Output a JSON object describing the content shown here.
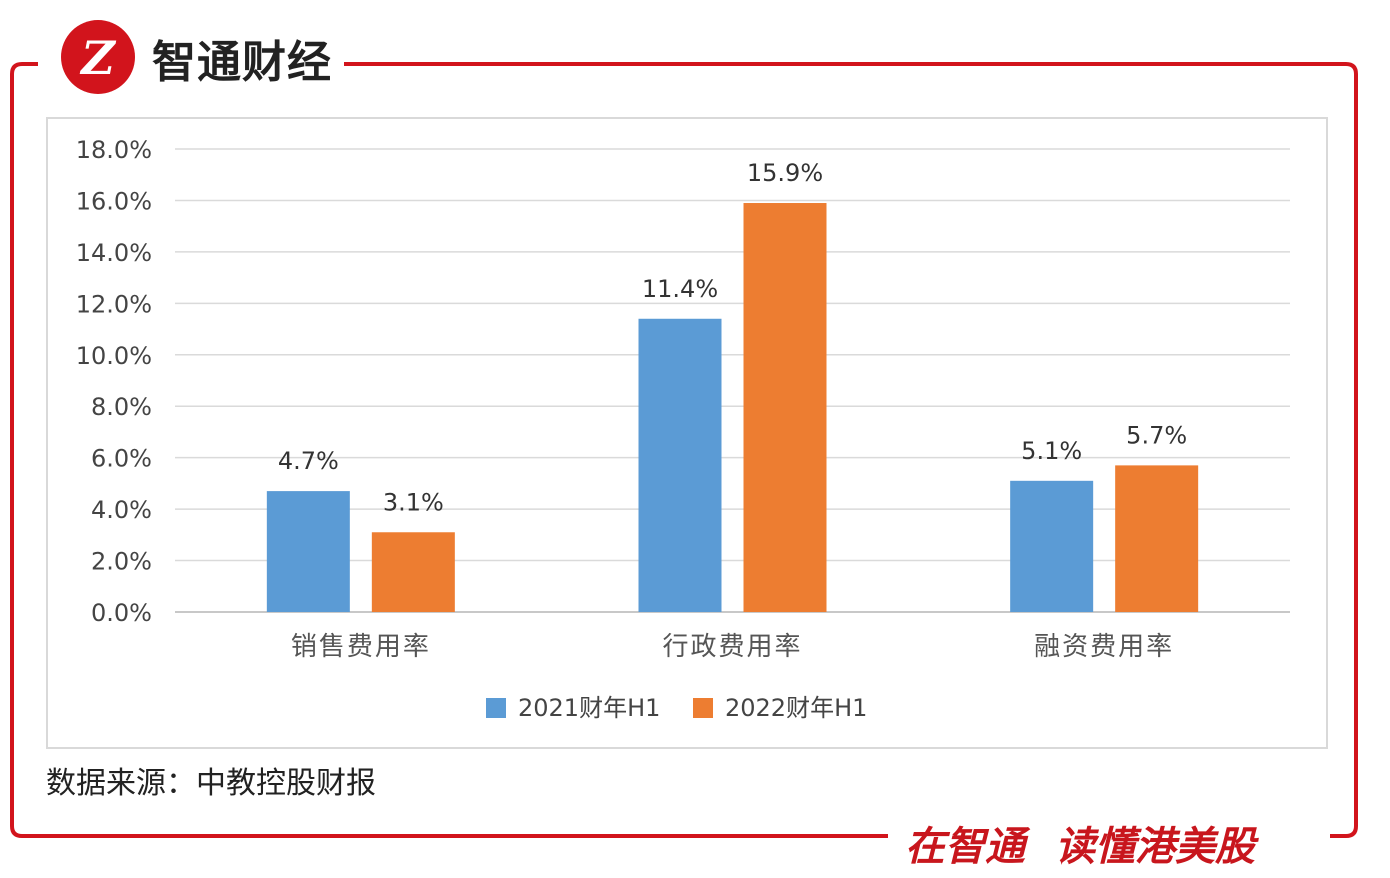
{
  "brand": {
    "name": "智通财经",
    "logo_text": "Z",
    "accent_color": "#d2141c"
  },
  "chart_data": {
    "type": "bar",
    "categories": [
      "销售费用率",
      "行政费用率",
      "融资费用率"
    ],
    "series": [
      {
        "name": "2021财年H1",
        "values": [
          4.7,
          11.4,
          5.1
        ],
        "labels": [
          "4.7%",
          "11.4%",
          "5.1%"
        ],
        "color": "#5b9bd5"
      },
      {
        "name": "2022财年H1",
        "values": [
          3.1,
          15.9,
          5.7
        ],
        "labels": [
          "3.1%",
          "15.9%",
          "5.7%"
        ],
        "color": "#ed7d31"
      }
    ],
    "y_ticks": [
      "0.0%",
      "2.0%",
      "4.0%",
      "6.0%",
      "8.0%",
      "10.0%",
      "12.0%",
      "14.0%",
      "16.0%",
      "18.0%"
    ],
    "ylim": [
      0,
      18
    ],
    "grid": true,
    "legend_position": "bottom"
  },
  "source_text": "数据来源：中教控股财报",
  "slogan": [
    "在智通",
    "读懂港美股"
  ]
}
